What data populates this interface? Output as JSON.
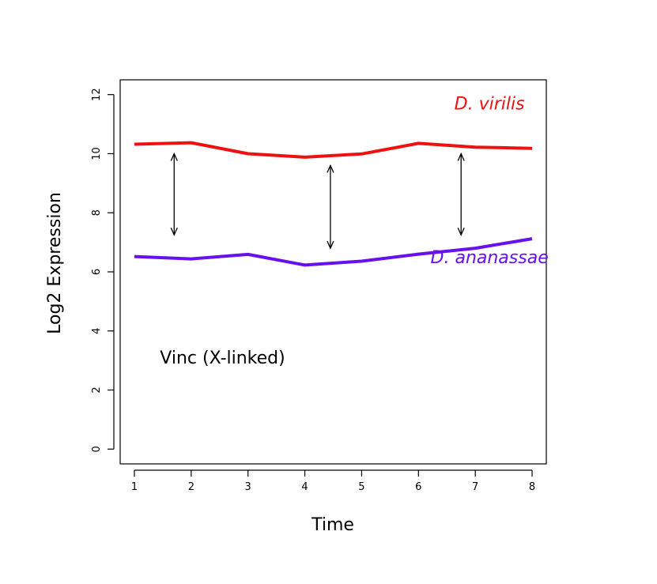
{
  "chart_data": {
    "type": "line",
    "title": "",
    "xlabel": "Time",
    "ylabel": "Log2 Expression",
    "x": [
      1,
      2,
      3,
      4,
      5,
      6,
      7,
      8
    ],
    "xlim": [
      0.75,
      8.25
    ],
    "ylim": [
      -0.5,
      12.5
    ],
    "xticks": [
      1,
      2,
      3,
      4,
      5,
      6,
      7,
      8
    ],
    "yticks": [
      0,
      2,
      4,
      6,
      8,
      10,
      12
    ],
    "grid": false,
    "legend": "none",
    "series": [
      {
        "name": "D. virilis",
        "color": "#ee1111",
        "values": [
          10.32,
          10.37,
          10.0,
          9.88,
          9.99,
          10.35,
          10.22,
          10.18
        ]
      },
      {
        "name": "D. ananassae",
        "color": "#6611ee",
        "values": [
          6.52,
          6.44,
          6.59,
          6.23,
          6.36,
          6.6,
          6.8,
          7.12
        ]
      }
    ],
    "annotations": [
      {
        "text": "Vinc (X-linked)",
        "x": 1.45,
        "y": 2.9
      }
    ],
    "arrows": [
      {
        "x": 1.7,
        "y_from": 7.25,
        "y_to": 10.0
      },
      {
        "x": 4.45,
        "y_from": 6.8,
        "y_to": 9.6
      },
      {
        "x": 6.75,
        "y_from": 7.25,
        "y_to": 10.0
      }
    ],
    "series_labels": [
      {
        "series": 0,
        "x": 7.25,
        "y": 11.5
      },
      {
        "series": 1,
        "x": 7.25,
        "y": 6.3
      }
    ]
  }
}
